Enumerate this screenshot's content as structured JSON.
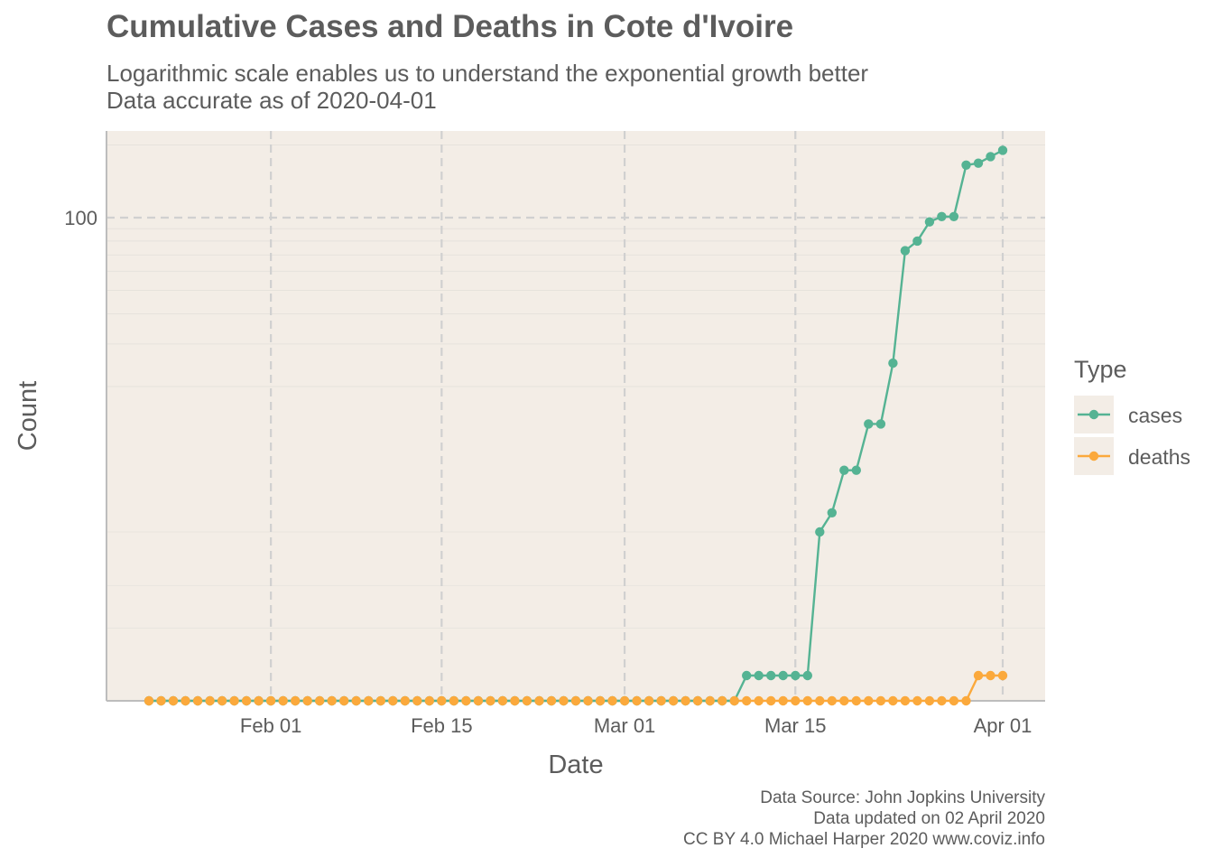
{
  "title": "Cumulative Cases and Deaths in Cote d'Ivoire",
  "subtitle": {
    "line1": "Logarithmic scale enables us to understand the exponential growth better",
    "line2": "Data accurate as of 2020-04-01"
  },
  "caption": {
    "line1": "Data Source: John Jopkins University",
    "line2": "Data updated on 02 April 2020",
    "line3": "CC BY 4.0 Michael Harper 2020 www.coviz.info"
  },
  "colors": {
    "panel_bg": "#f3ede6",
    "cases": "#55b393",
    "deaths": "#fba93c",
    "grid": "#d0d0d0",
    "axis": "#bdbdbd"
  },
  "chart_data": {
    "type": "line",
    "x_axis": {
      "label": "Date",
      "start": "2020-01-22",
      "end": "2020-04-01",
      "ticks": [
        {
          "date": "2020-02-01",
          "label": "Feb 01"
        },
        {
          "date": "2020-02-15",
          "label": "Feb 15"
        },
        {
          "date": "2020-03-01",
          "label": "Mar 01"
        },
        {
          "date": "2020-03-15",
          "label": "Mar 15"
        },
        {
          "date": "2020-04-01",
          "label": "Apr 01"
        }
      ]
    },
    "y_axis": {
      "label": "Count",
      "scale": "log",
      "range": [
        1,
        180
      ],
      "ticks": [
        {
          "value": 100,
          "label": "100"
        }
      ]
    },
    "legend": {
      "title": "Type",
      "position": "right"
    },
    "series": [
      {
        "name": "cases",
        "values": [
          1,
          1,
          1,
          1,
          1,
          1,
          1,
          1,
          1,
          1,
          1,
          1,
          1,
          1,
          1,
          1,
          1,
          1,
          1,
          1,
          1,
          1,
          1,
          1,
          1,
          1,
          1,
          1,
          1,
          1,
          1,
          1,
          1,
          1,
          1,
          1,
          1,
          1,
          1,
          1,
          1,
          1,
          1,
          1,
          1,
          1,
          1,
          1,
          1,
          1,
          1,
          1,
          1,
          1,
          1,
          1,
          1,
          1,
          1,
          1,
          1,
          1,
          1,
          1,
          1,
          1,
          1,
          1,
          1,
          1,
          1
        ],
        "override": {
          "2020-03-11": 1,
          "2020-03-12": 1,
          "2020-03-13": 1,
          "2020-03-14": 1,
          "2020-03-15": 1,
          "2020-03-16": 1,
          "2020-03-17": 5,
          "2020-03-18": 6,
          "2020-03-19": 9,
          "2020-03-20": 9,
          "2020-03-21": 14,
          "2020-03-22": 14,
          "2020-03-23": 25,
          "2020-03-24": 73,
          "2020-03-25": 80,
          "2020-03-26": 96,
          "2020-03-27": 101,
          "2020-03-28": 101,
          "2020-03-29": 165,
          "2020-03-30": 168,
          "2020-03-31": 179,
          "2020-04-01": 190
        }
      },
      {
        "name": "deaths",
        "values": [],
        "override": {
          "2020-03-30": 1,
          "2020-03-31": 1,
          "2020-04-01": 1
        }
      }
    ]
  }
}
